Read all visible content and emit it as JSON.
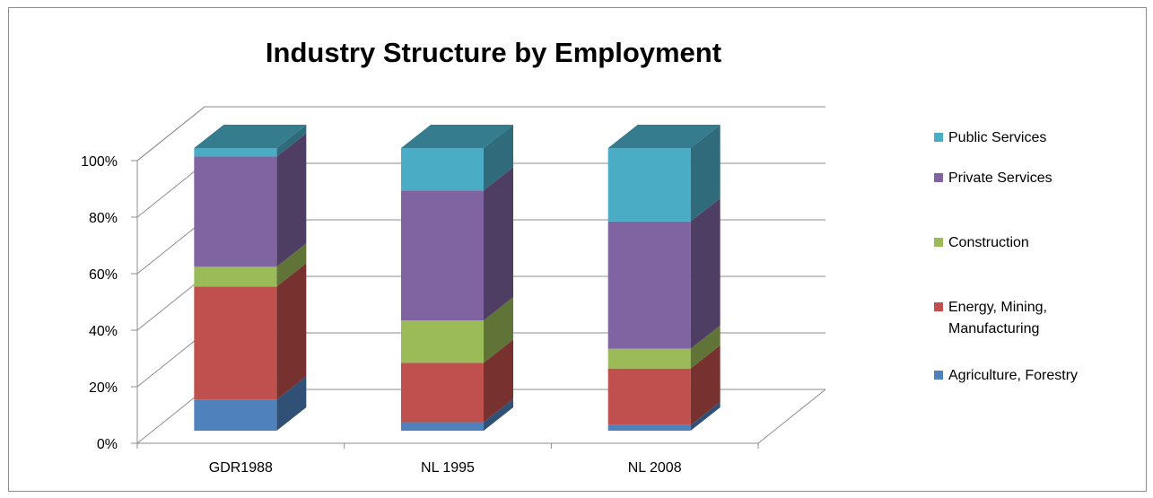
{
  "chart_data": {
    "type": "bar",
    "stacked": true,
    "percent_stacked": true,
    "three_d": true,
    "title": "Industry Structure by Employment",
    "xlabel": "",
    "ylabel": "",
    "categories": [
      "GDR1988",
      "NL 1995",
      "NL 2008"
    ],
    "ylim": [
      0,
      100
    ],
    "y_ticks": [
      "0%",
      "20%",
      "40%",
      "60%",
      "80%",
      "100%"
    ],
    "legend_position": "right",
    "grid": true,
    "series": [
      {
        "name": "Agriculture, Forestry",
        "color": "#4f81bd",
        "values": [
          11,
          3,
          2
        ]
      },
      {
        "name": "Energy, Mining, Manufacturing",
        "color": "#c0504d",
        "values": [
          40,
          21,
          20
        ]
      },
      {
        "name": "Construction",
        "color": "#9bbb59",
        "values": [
          7,
          15,
          7
        ]
      },
      {
        "name": "Private Services",
        "color": "#8064a2",
        "values": [
          39,
          46,
          45
        ]
      },
      {
        "name": "Public Services",
        "color": "#4bacc6",
        "values": [
          3,
          15,
          26
        ]
      }
    ]
  }
}
